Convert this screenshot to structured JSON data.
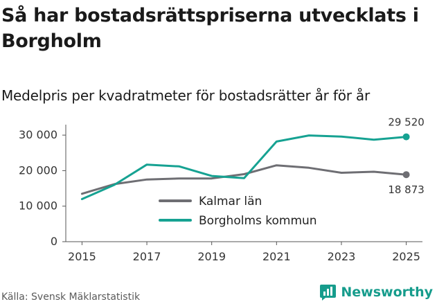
{
  "header": {
    "title": "Så har bostadsrättspriserna utvecklats i Borgholm",
    "subtitle": "Medelpris per kvadratmeter för bostadsrätter år för år"
  },
  "footer": {
    "source": "Källa: Svensk Mäklarstatistik",
    "brand": "Newsworthy",
    "brand_icon": "newsworthy-logo-icon"
  },
  "chart_data": {
    "type": "line",
    "title": "Så har bostadsrättspriserna utvecklats i Borgholm",
    "subtitle": "Medelpris per kvadratmeter för bostadsrätter år för år",
    "xlabel": "",
    "ylabel": "",
    "x": [
      2015,
      2016,
      2017,
      2018,
      2019,
      2020,
      2021,
      2022,
      2023,
      2024,
      2025
    ],
    "xticks": [
      2015,
      2017,
      2019,
      2021,
      2023,
      2025
    ],
    "xtick_labels": [
      "2015",
      "2017",
      "2019",
      "2021",
      "2023",
      "2025"
    ],
    "ylim": [
      0,
      31000
    ],
    "yticks": [
      0,
      10000,
      20000,
      30000
    ],
    "ytick_labels": [
      "0",
      "10 000",
      "20 000",
      "30 000"
    ],
    "grid": false,
    "legend_position": "center",
    "series": [
      {
        "name": "Kalmar län",
        "color": "#6e6e73",
        "values": [
          13500,
          16200,
          17500,
          17800,
          17800,
          19000,
          21500,
          20800,
          19400,
          19700,
          18873
        ],
        "end_label": "18 873"
      },
      {
        "name": "Borgholms kommun",
        "color": "#16a292",
        "values": [
          12000,
          16000,
          21700,
          21200,
          18500,
          17900,
          28200,
          29900,
          29600,
          28700,
          29520
        ],
        "end_label": "29 520"
      }
    ]
  }
}
